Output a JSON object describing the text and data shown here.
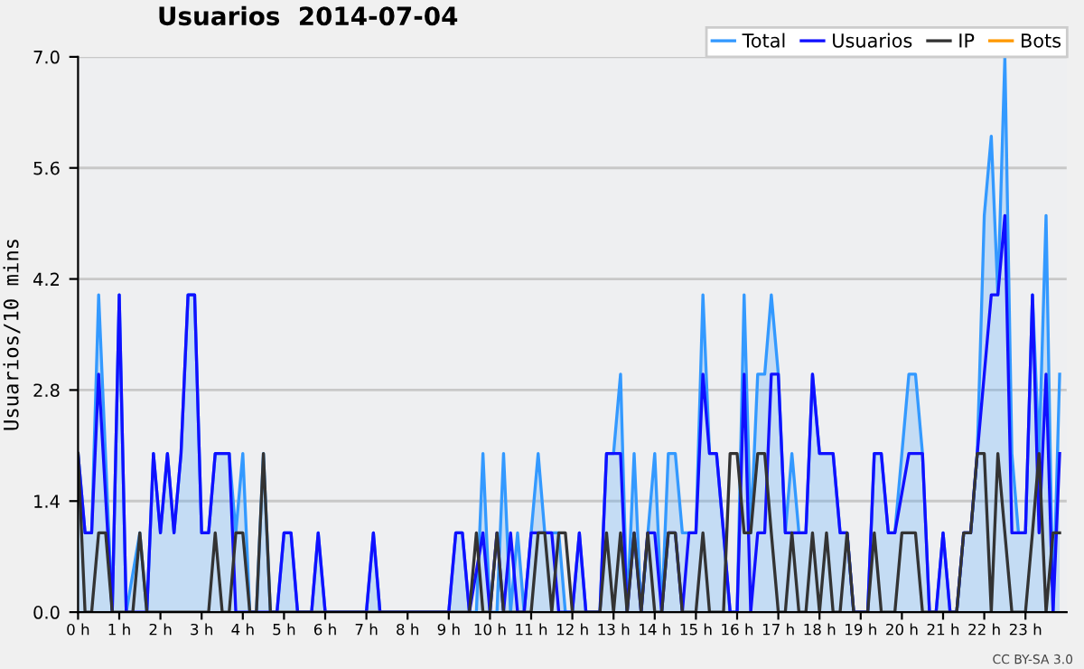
{
  "chart_data": {
    "type": "line",
    "title": "Usuarios  2014-07-04",
    "ylabel": "Usuarios/10 mins",
    "xlim": [
      0,
      24
    ],
    "ylim": [
      0,
      7
    ],
    "xticks": [
      {
        "value": 0,
        "label": "0 h"
      },
      {
        "value": 1,
        "label": "1 h"
      },
      {
        "value": 2,
        "label": "2 h"
      },
      {
        "value": 3,
        "label": "3 h"
      },
      {
        "value": 4,
        "label": "4 h"
      },
      {
        "value": 5,
        "label": "5 h"
      },
      {
        "value": 6,
        "label": "6 h"
      },
      {
        "value": 7,
        "label": "7 h"
      },
      {
        "value": 8,
        "label": "8 h"
      },
      {
        "value": 9,
        "label": "9 h"
      },
      {
        "value": 10,
        "label": "10 h"
      },
      {
        "value": 11,
        "label": "11 h"
      },
      {
        "value": 12,
        "label": "12 h"
      },
      {
        "value": 13,
        "label": "13 h"
      },
      {
        "value": 14,
        "label": "14 h"
      },
      {
        "value": 15,
        "label": "15 h"
      },
      {
        "value": 16,
        "label": "16 h"
      },
      {
        "value": 17,
        "label": "17 h"
      },
      {
        "value": 18,
        "label": "18 h"
      },
      {
        "value": 19,
        "label": "19 h"
      },
      {
        "value": 20,
        "label": "20 h"
      },
      {
        "value": 21,
        "label": "21 h"
      },
      {
        "value": 22,
        "label": "22 h"
      },
      {
        "value": 23,
        "label": "23 h"
      }
    ],
    "yticks": [
      {
        "value": 0,
        "label": "0.0"
      },
      {
        "value": 1.4,
        "label": "1.4"
      },
      {
        "value": 2.8,
        "label": "2.8"
      },
      {
        "value": 4.2,
        "label": "4.2"
      },
      {
        "value": 5.6,
        "label": "5.6"
      },
      {
        "value": 7,
        "label": "7.0"
      }
    ],
    "grid": "y",
    "legend": "top right",
    "annotations": [
      "CC BY-SA 3.0"
    ],
    "series": [
      {
        "name": "Total",
        "type": "area",
        "color": "#3399ff",
        "x": [
          0,
          0.17,
          0.33,
          0.5,
          0.83,
          1.0,
          1.17,
          1.5,
          1.67,
          1.83,
          2.0,
          2.17,
          2.33,
          2.5,
          2.67,
          2.83,
          3.0,
          3.17,
          3.33,
          3.67,
          3.83,
          4.0,
          4.17,
          4.33,
          4.5,
          4.67,
          4.83,
          5.0,
          5.17,
          5.33,
          5.67,
          5.83,
          6.0,
          7.0,
          7.17,
          7.33,
          9.0,
          9.17,
          9.33,
          9.5,
          9.67,
          9.83,
          10.0,
          10.17,
          10.33,
          10.5,
          10.67,
          10.83,
          11.0,
          11.17,
          11.33,
          11.67,
          11.83,
          12.0,
          12.17,
          12.33,
          12.67,
          12.83,
          13.0,
          13.17,
          13.33,
          13.5,
          13.67,
          14.0,
          14.17,
          14.33,
          14.5,
          14.67,
          14.83,
          15.0,
          15.17,
          15.33,
          15.5,
          15.67,
          15.83,
          16.0,
          16.17,
          16.33,
          16.5,
          16.67,
          16.83,
          17.0,
          17.17,
          17.33,
          17.5,
          17.67,
          17.83,
          18.0,
          18.17,
          18.33,
          18.5,
          18.67,
          18.83,
          19.0,
          19.17,
          19.33,
          19.5,
          19.67,
          19.83,
          20.0,
          20.17,
          20.33,
          20.5,
          20.67,
          20.83,
          21.0,
          21.17,
          21.33,
          21.5,
          21.67,
          21.83,
          22.0,
          22.17,
          22.33,
          22.5,
          22.67,
          22.83,
          23.0,
          23.17,
          23.33,
          23.5,
          23.67,
          23.83
        ],
        "values": [
          2,
          1,
          1,
          4,
          0,
          4,
          0,
          1,
          0,
          2,
          1,
          2,
          1,
          2,
          4,
          4,
          1,
          1,
          2,
          2,
          1,
          2,
          0,
          0,
          2,
          0,
          0,
          1,
          1,
          0,
          0,
          1,
          0,
          0,
          1,
          0,
          0,
          1,
          1,
          0,
          0,
          2,
          0,
          0,
          2,
          0,
          1,
          0,
          1,
          2,
          1,
          1,
          0,
          0,
          1,
          0,
          0,
          2,
          2,
          3,
          0,
          2,
          0,
          2,
          0,
          2,
          2,
          1,
          1,
          1,
          4,
          2,
          2,
          1,
          0,
          0,
          4,
          1,
          3,
          3,
          4,
          3,
          1,
          2,
          1,
          1,
          3,
          2,
          2,
          2,
          1,
          1,
          0,
          0,
          0,
          2,
          2,
          1,
          1,
          2,
          3,
          3,
          2,
          0,
          0,
          1,
          0,
          0,
          1,
          1,
          2,
          5,
          6,
          4,
          7,
          2,
          1,
          1,
          4,
          2,
          5,
          0,
          3
        ]
      },
      {
        "name": "Usuarios",
        "color": "#1010ff",
        "x": [
          0,
          0.17,
          0.33,
          0.5,
          0.83,
          1.0,
          1.17,
          1.67,
          1.83,
          2.0,
          2.17,
          2.33,
          2.5,
          2.67,
          2.83,
          3.0,
          3.17,
          3.33,
          3.67,
          3.83,
          4.83,
          5.0,
          5.17,
          5.33,
          5.67,
          5.83,
          6.0,
          7.0,
          7.17,
          7.33,
          9.0,
          9.17,
          9.33,
          9.5,
          9.83,
          10.0,
          10.17,
          10.33,
          10.5,
          10.67,
          10.83,
          11.0,
          11.17,
          11.5,
          11.67,
          12.0,
          12.17,
          12.33,
          12.67,
          12.83,
          13.17,
          13.33,
          13.5,
          13.67,
          13.83,
          14.0,
          14.17,
          14.33,
          14.5,
          14.67,
          14.83,
          15.0,
          15.17,
          15.33,
          15.5,
          15.67,
          15.83,
          16.0,
          16.17,
          16.33,
          16.5,
          16.67,
          16.83,
          17.0,
          17.17,
          17.67,
          17.83,
          18.0,
          18.17,
          18.33,
          18.5,
          18.67,
          18.83,
          19.0,
          19.17,
          19.33,
          19.5,
          19.67,
          19.83,
          20.17,
          20.33,
          20.5,
          20.67,
          20.83,
          21.0,
          21.17,
          21.33,
          21.5,
          21.67,
          21.83,
          22.0,
          22.17,
          22.33,
          22.5,
          22.67,
          22.83,
          23.0,
          23.17,
          23.33,
          23.5,
          23.67,
          23.83
        ],
        "values": [
          2,
          1,
          1,
          3,
          0,
          4,
          0,
          0,
          2,
          1,
          2,
          1,
          2,
          4,
          4,
          1,
          1,
          2,
          2,
          0,
          0,
          1,
          1,
          0,
          0,
          1,
          0,
          0,
          1,
          0,
          0,
          1,
          1,
          0,
          1,
          0,
          1,
          0,
          1,
          0,
          0,
          1,
          1,
          1,
          0,
          0,
          1,
          0,
          0,
          2,
          2,
          0,
          1,
          0,
          1,
          1,
          0,
          1,
          1,
          0,
          1,
          1,
          3,
          2,
          2,
          1,
          0,
          0,
          3,
          0,
          1,
          1,
          3,
          3,
          1,
          1,
          3,
          2,
          2,
          2,
          1,
          1,
          0,
          0,
          0,
          2,
          2,
          1,
          1,
          2,
          2,
          2,
          0,
          0,
          1,
          0,
          0,
          1,
          1,
          2,
          3,
          4,
          4,
          5,
          1,
          1,
          1,
          4,
          1,
          3,
          0,
          2
        ]
      },
      {
        "name": "IP",
        "color": "#333333",
        "x": [
          0,
          0.17,
          0.33,
          0.5,
          0.67,
          0.83,
          1.33,
          1.5,
          1.67,
          3.17,
          3.33,
          3.5,
          3.67,
          3.83,
          4.0,
          4.17,
          4.33,
          4.5,
          4.67,
          9.5,
          9.67,
          9.83,
          10.0,
          10.17,
          10.33,
          10.5,
          11.0,
          11.17,
          11.33,
          11.5,
          11.67,
          11.83,
          12.0,
          12.67,
          12.83,
          13.0,
          13.17,
          13.33,
          13.5,
          13.67,
          13.83,
          14.0,
          14.17,
          14.33,
          14.5,
          14.67,
          15.0,
          15.17,
          15.33,
          15.67,
          15.83,
          16.0,
          16.17,
          16.33,
          16.5,
          16.67,
          16.83,
          17.0,
          17.17,
          17.33,
          17.5,
          17.67,
          17.83,
          18.0,
          18.17,
          18.33,
          18.5,
          18.67,
          18.83,
          19.0,
          19.17,
          19.33,
          19.5,
          19.67,
          19.83,
          20.0,
          20.17,
          20.33,
          20.5,
          20.67,
          21.33,
          21.5,
          21.67,
          21.83,
          22.0,
          22.17,
          22.33,
          22.5,
          22.67,
          22.83,
          23.0,
          23.17,
          23.33,
          23.5,
          23.67,
          23.83
        ],
        "values": [
          2,
          0,
          0,
          1,
          1,
          0,
          0,
          1,
          0,
          0,
          1,
          0,
          0,
          1,
          1,
          0,
          0,
          2,
          0,
          0,
          1,
          0,
          0,
          1,
          0,
          0,
          0,
          1,
          1,
          0,
          1,
          1,
          0,
          0,
          1,
          0,
          1,
          0,
          1,
          0,
          1,
          0,
          0,
          1,
          1,
          0,
          0,
          1,
          0,
          0,
          2,
          2,
          1,
          1,
          2,
          2,
          1,
          0,
          0,
          1,
          0,
          0,
          1,
          0,
          1,
          0,
          0,
          1,
          0,
          0,
          0,
          1,
          0,
          0,
          0,
          1,
          1,
          1,
          0,
          0,
          0,
          1,
          1,
          2,
          2,
          0,
          2,
          1,
          0,
          0,
          0,
          1,
          2,
          0,
          1,
          1
        ]
      },
      {
        "name": "Bots",
        "color": "#ff9900"
      }
    ]
  }
}
